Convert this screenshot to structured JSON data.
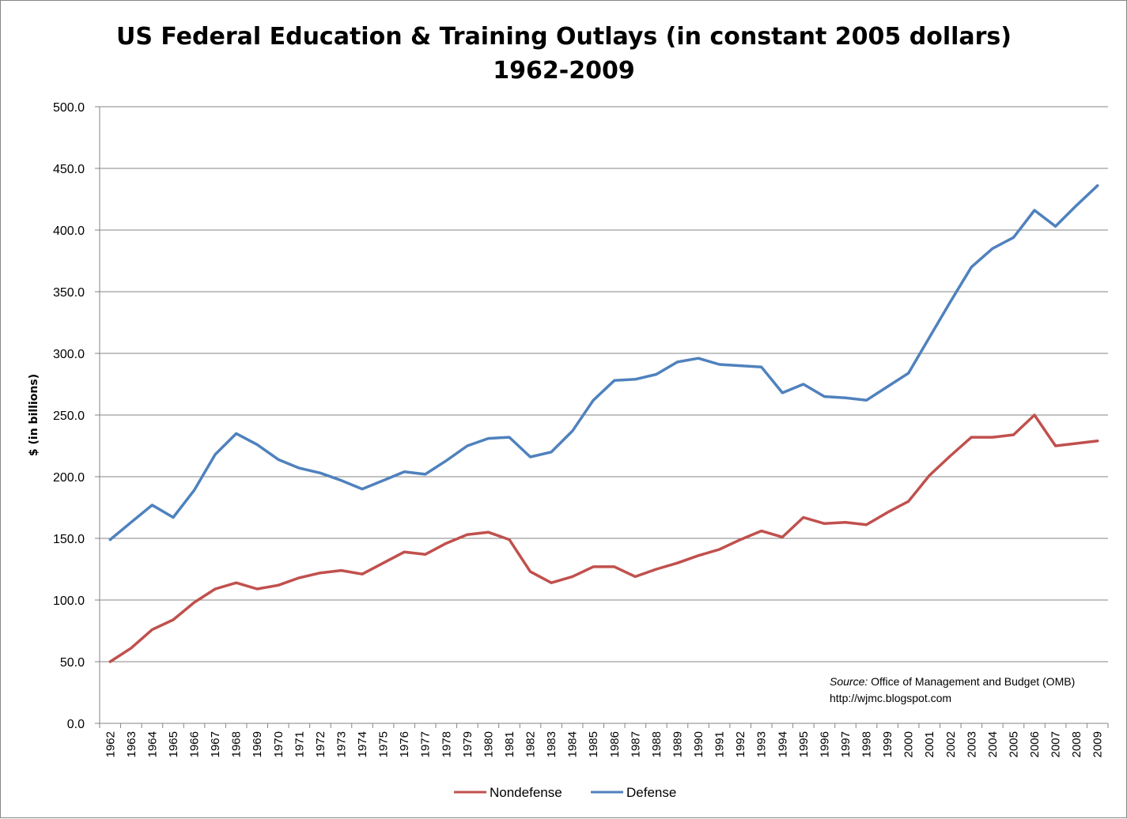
{
  "chart_data": {
    "type": "line",
    "title": "US Federal Education & Training Outlays (in constant 2005 dollars)",
    "subtitle": "1962-2009",
    "xlabel": "",
    "ylabel": "$ (in billions)",
    "ylim": [
      0,
      500
    ],
    "yticks": [
      "0.0",
      "50.0",
      "100.0",
      "150.0",
      "200.0",
      "250.0",
      "300.0",
      "350.0",
      "400.0",
      "450.0",
      "500.0"
    ],
    "grid": true,
    "legend_position": "bottom",
    "categories": [
      "1962",
      "1963",
      "1964",
      "1965",
      "1966",
      "1967",
      "1968",
      "1969",
      "1970",
      "1971",
      "1972",
      "1973",
      "1974",
      "1975",
      "1976",
      "1977",
      "1978",
      "1979",
      "1980",
      "1981",
      "1982",
      "1983",
      "1984",
      "1985",
      "1986",
      "1987",
      "1988",
      "1989",
      "1990",
      "1991",
      "1992",
      "1993",
      "1994",
      "1995",
      "1996",
      "1997",
      "1998",
      "1999",
      "2000",
      "2001",
      "2002",
      "2003",
      "2004",
      "2005",
      "2006",
      "2007",
      "2008",
      "2009"
    ],
    "series": [
      {
        "name": "Nondefense",
        "color": "#c0504d",
        "values": [
          50,
          61,
          76,
          84,
          98,
          109,
          114,
          109,
          112,
          118,
          122,
          124,
          121,
          130,
          139,
          137,
          146,
          153,
          155,
          149,
          123,
          114,
          119,
          127,
          127,
          119,
          125,
          130,
          136,
          141,
          149,
          156,
          151,
          167,
          162,
          163,
          161,
          171,
          180,
          201,
          217,
          232,
          232,
          234,
          250,
          225,
          227,
          229
        ]
      },
      {
        "name": "Defense",
        "color": "#4f81bd",
        "values": [
          149,
          163,
          177,
          167,
          189,
          218,
          235,
          226,
          214,
          207,
          203,
          197,
          190,
          197,
          204,
          202,
          213,
          225,
          231,
          232,
          216,
          220,
          237,
          262,
          278,
          279,
          283,
          293,
          296,
          291,
          290,
          289,
          268,
          275,
          265,
          264,
          262,
          273,
          284,
          313,
          342,
          370,
          385,
          394,
          416,
          403,
          420,
          436
        ]
      }
    ],
    "annotation": {
      "source_label": "Source:",
      "source_text": " Office of Management and Budget (OMB)",
      "url": "http://wjmc.blogspot.com"
    }
  }
}
